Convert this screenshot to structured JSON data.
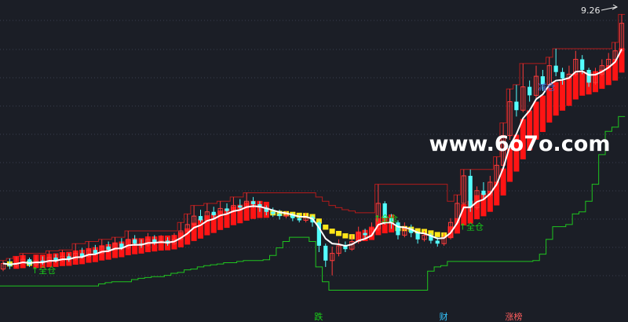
{
  "chart_data": {
    "type": "candlestick",
    "title": "",
    "xlabel": "",
    "ylabel": "",
    "grid": true,
    "ylim": [
      2.0,
      9.6
    ],
    "price_label": "9.26",
    "watermark": "www.6o7o.com",
    "signals": [
      {
        "text": "↑全仓",
        "idx": 5,
        "price": 3.22,
        "color": "#19d119"
      },
      {
        "text": "↑全仓",
        "idx": 57,
        "price": 4.45,
        "color": "#19d119"
      },
      {
        "text": "↑全仓",
        "idx": 70,
        "price": 4.25,
        "color": "#19d119"
      },
      {
        "text": "减仓",
        "idx": 82,
        "price": 7.55,
        "color": "#4f6bd6"
      }
    ],
    "bottom_markers": [
      {
        "text": "跌",
        "idx": 48,
        "color": "#19d119"
      },
      {
        "text": "财",
        "idx": 67,
        "color": "#35c6ff"
      },
      {
        "text": "涨榜",
        "idx": 77,
        "color": "#ff5e5e"
      }
    ],
    "candles": [
      [
        3.25,
        3.38,
        3.45,
        3.2
      ],
      [
        3.38,
        3.32,
        3.5,
        3.25
      ],
      [
        3.32,
        3.4,
        3.55,
        3.28
      ],
      [
        3.4,
        3.48,
        3.62,
        3.35
      ],
      [
        3.48,
        3.35,
        3.52,
        3.3
      ],
      [
        3.35,
        3.45,
        3.58,
        3.3
      ],
      [
        3.45,
        3.4,
        3.55,
        3.35
      ],
      [
        3.4,
        3.52,
        3.68,
        3.38
      ],
      [
        3.52,
        3.45,
        3.6,
        3.4
      ],
      [
        3.45,
        3.55,
        3.7,
        3.42
      ],
      [
        3.55,
        3.48,
        3.62,
        3.42
      ],
      [
        3.48,
        3.62,
        3.85,
        3.45
      ],
      [
        3.62,
        3.55,
        3.75,
        3.5
      ],
      [
        3.55,
        3.7,
        3.9,
        3.52
      ],
      [
        3.7,
        3.62,
        3.82,
        3.58
      ],
      [
        3.62,
        3.78,
        3.95,
        3.6
      ],
      [
        3.78,
        3.7,
        3.9,
        3.65
      ],
      [
        3.7,
        3.85,
        4.0,
        3.68
      ],
      [
        3.85,
        3.75,
        3.98,
        3.7
      ],
      [
        3.75,
        3.95,
        4.15,
        3.72
      ],
      [
        3.95,
        3.85,
        4.05,
        3.8
      ],
      [
        3.85,
        3.82,
        3.95,
        3.75
      ],
      [
        3.82,
        3.95,
        4.1,
        3.78
      ],
      [
        3.95,
        3.88,
        4.05,
        3.82
      ],
      [
        3.88,
        3.92,
        4.05,
        3.85
      ],
      [
        3.92,
        3.85,
        4.0,
        3.8
      ],
      [
        3.85,
        3.95,
        4.1,
        3.82
      ],
      [
        3.95,
        4.15,
        4.35,
        3.92
      ],
      [
        4.15,
        4.3,
        4.55,
        4.1
      ],
      [
        4.3,
        4.5,
        4.75,
        4.25
      ],
      [
        4.5,
        4.4,
        4.65,
        4.35
      ],
      [
        4.4,
        4.6,
        4.8,
        4.38
      ],
      [
        4.6,
        4.52,
        4.72,
        4.45
      ],
      [
        4.52,
        4.68,
        4.85,
        4.5
      ],
      [
        4.68,
        4.62,
        4.8,
        4.55
      ],
      [
        4.62,
        4.75,
        4.95,
        4.58
      ],
      [
        4.75,
        4.7,
        4.9,
        4.65
      ],
      [
        4.7,
        4.85,
        5.05,
        4.68
      ],
      [
        4.85,
        4.78,
        4.95,
        4.7
      ],
      [
        4.78,
        4.7,
        4.85,
        4.6
      ],
      [
        4.7,
        4.6,
        4.75,
        4.52
      ],
      [
        4.6,
        4.55,
        4.7,
        4.48
      ],
      [
        4.55,
        4.5,
        4.65,
        4.42
      ],
      [
        4.5,
        4.52,
        4.62,
        4.45
      ],
      [
        4.52,
        4.45,
        4.58,
        4.38
      ],
      [
        4.45,
        4.4,
        4.55,
        4.35
      ],
      [
        4.4,
        4.48,
        4.58,
        4.35
      ],
      [
        4.48,
        4.35,
        4.52,
        4.25
      ],
      [
        4.35,
        3.8,
        4.4,
        3.65
      ],
      [
        3.8,
        3.45,
        3.85,
        3.3
      ],
      [
        3.45,
        3.62,
        3.78,
        3.1
      ],
      [
        3.62,
        3.8,
        3.95,
        3.55
      ],
      [
        3.8,
        3.72,
        3.9,
        3.65
      ],
      [
        3.72,
        3.9,
        4.05,
        3.68
      ],
      [
        3.9,
        4.1,
        4.25,
        3.85
      ],
      [
        4.1,
        4.05,
        4.2,
        3.95
      ],
      [
        4.05,
        4.2,
        4.35,
        4.0
      ],
      [
        4.2,
        4.8,
        5.25,
        4.15
      ],
      [
        4.8,
        4.45,
        4.85,
        4.3
      ],
      [
        4.45,
        4.35,
        4.55,
        4.2
      ],
      [
        4.35,
        4.05,
        4.4,
        3.95
      ],
      [
        4.05,
        4.2,
        4.35,
        4.0
      ],
      [
        4.2,
        4.1,
        4.3,
        4.0
      ],
      [
        4.1,
        3.95,
        4.15,
        3.85
      ],
      [
        3.95,
        4.05,
        4.15,
        3.9
      ],
      [
        4.05,
        3.92,
        4.1,
        3.85
      ],
      [
        3.92,
        3.85,
        4.0,
        3.78
      ],
      [
        3.85,
        4.0,
        4.1,
        3.8
      ],
      [
        4.0,
        4.35,
        4.45,
        3.95
      ],
      [
        4.35,
        4.8,
        5.0,
        4.3
      ],
      [
        4.8,
        5.45,
        5.6,
        4.75
      ],
      [
        5.45,
        4.7,
        5.6,
        4.6
      ],
      [
        4.7,
        5.1,
        5.2,
        4.65
      ],
      [
        5.1,
        5.0,
        5.3,
        4.9
      ],
      [
        5.0,
        5.3,
        5.45,
        4.95
      ],
      [
        5.3,
        5.7,
        5.9,
        5.2
      ],
      [
        5.7,
        6.4,
        6.7,
        5.6
      ],
      [
        6.4,
        7.2,
        7.5,
        6.3
      ],
      [
        7.2,
        7.0,
        7.6,
        6.85
      ],
      [
        7.0,
        7.55,
        8.1,
        6.95
      ],
      [
        7.55,
        7.35,
        7.7,
        7.2
      ],
      [
        7.35,
        7.8,
        8.05,
        7.25
      ],
      [
        7.8,
        7.6,
        7.95,
        7.45
      ],
      [
        7.6,
        8.05,
        8.25,
        7.55
      ],
      [
        8.05,
        7.9,
        8.45,
        7.8
      ],
      [
        7.9,
        7.75,
        8.0,
        7.6
      ],
      [
        7.75,
        7.85,
        8.05,
        7.7
      ],
      [
        7.85,
        8.2,
        8.4,
        7.8
      ],
      [
        8.2,
        7.95,
        8.3,
        7.85
      ],
      [
        7.95,
        7.65,
        8.0,
        7.55
      ],
      [
        7.65,
        7.85,
        8.0,
        7.6
      ],
      [
        7.85,
        8.05,
        8.2,
        7.8
      ],
      [
        8.05,
        8.2,
        8.35,
        8.0
      ],
      [
        8.2,
        8.4,
        8.6,
        8.15
      ],
      [
        8.4,
        9.05,
        9.26,
        8.35
      ]
    ]
  }
}
